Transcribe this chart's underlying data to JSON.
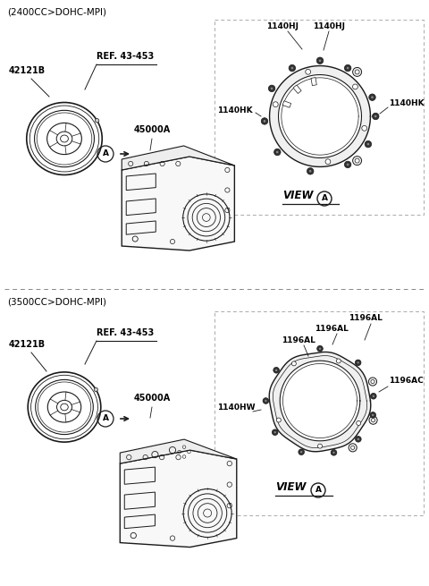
{
  "bg_color": "#ffffff",
  "line_color": "#1a1a1a",
  "text_color": "#000000",
  "gray_color": "#888888",
  "section1_label": "(2400CC>DOHC-MPI)",
  "section2_label": "(3500CC>DOHC-MPI)",
  "label_42121B": "42121B",
  "label_ref": "REF. 43-453",
  "label_45000A": "45000A",
  "label_view": "VIEW",
  "label_A": "A",
  "top_gasket_labels": [
    "1140HJ",
    "1140HJ",
    "1140HK",
    "1140HK"
  ],
  "bot_gasket_labels": [
    "1196AL",
    "1196AL",
    "1196AL",
    "1196AC",
    "1140HW"
  ],
  "font_size_section": 7.5,
  "font_size_part": 7.0,
  "font_size_small": 6.5
}
